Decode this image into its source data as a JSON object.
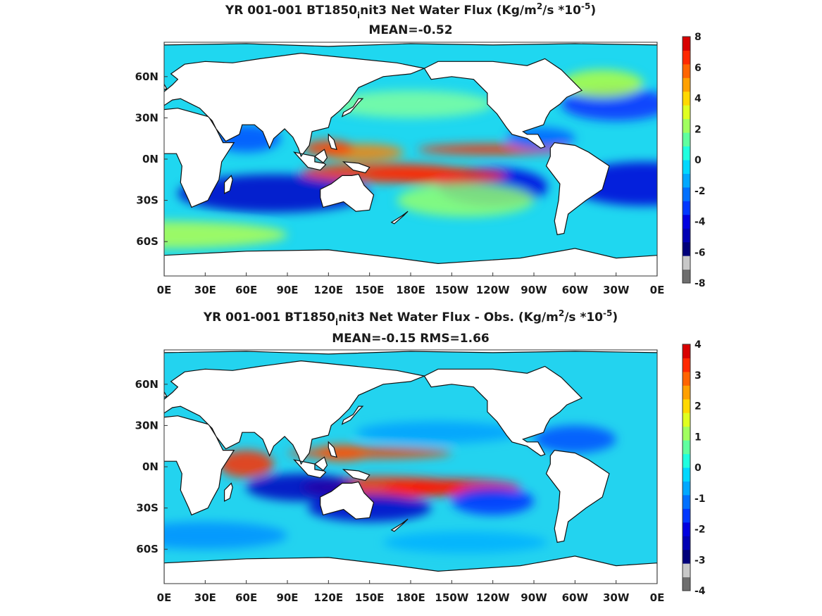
{
  "chart_data": [
    {
      "type": "heatmap",
      "title_main": "YR 001-001 BT1850",
      "title_sub_char": "i",
      "title_rest": "nit3  Net Water Flux (Kg/m",
      "title_exp1": "2",
      "title_mid": "/s *10",
      "title_exp2": "-5",
      "title_end": ")",
      "subtitle": "MEAN=-0.52",
      "x_ticks": [
        "0E",
        "30E",
        "60E",
        "90E",
        "120E",
        "150E",
        "180E",
        "150W",
        "120W",
        "90W",
        "60W",
        "30W",
        "0E"
      ],
      "y_ticks": [
        "60N",
        "30N",
        "0N",
        "30S",
        "60S"
      ],
      "y_tick_values": [
        60,
        30,
        0,
        -30,
        -60
      ],
      "ylim": [
        -85,
        85
      ],
      "colorbar": {
        "ticks": [
          "8",
          "6",
          "4",
          "2",
          "0",
          "-2",
          "-4",
          "-6",
          "-8"
        ],
        "min": -8,
        "max": 8,
        "colors": [
          "#6e6e6e",
          "#c8c8c8",
          "#00007a",
          "#0000b4",
          "#0000e0",
          "#0038ff",
          "#0070ff",
          "#00a8ff",
          "#00d8ff",
          "#20ffdf",
          "#60ff9f",
          "#a0ff5f",
          "#dfff20",
          "#ffd800",
          "#ffa000",
          "#ff6400",
          "#ff2800",
          "#d80000"
        ]
      },
      "grid": false
    },
    {
      "type": "heatmap",
      "title_main": "YR 001-001 BT1850",
      "title_sub_char": "i",
      "title_rest": "nit3  Net Water Flux - Obs. (Kg/m",
      "title_exp1": "2",
      "title_mid": "/s *10",
      "title_exp2": "-5",
      "title_end": ")",
      "subtitle": "MEAN=-0.15 RMS=1.66",
      "x_ticks": [
        "0E",
        "30E",
        "60E",
        "90E",
        "120E",
        "150E",
        "180E",
        "150W",
        "120W",
        "90W",
        "60W",
        "30W",
        "0E"
      ],
      "y_ticks": [
        "60N",
        "30N",
        "0N",
        "30S",
        "60S"
      ],
      "y_tick_values": [
        60,
        30,
        0,
        -30,
        -60
      ],
      "ylim": [
        -85,
        85
      ],
      "colorbar": {
        "ticks": [
          "4",
          "3",
          "2",
          "1",
          "0",
          "-1",
          "-2",
          "-3",
          "-4"
        ],
        "min": -4,
        "max": 4,
        "colors": [
          "#6e6e6e",
          "#c8c8c8",
          "#00007a",
          "#0000b4",
          "#0000e0",
          "#0038ff",
          "#0070ff",
          "#00a8ff",
          "#00d8ff",
          "#20ffdf",
          "#60ff9f",
          "#a0ff5f",
          "#dfff20",
          "#ffd800",
          "#ffa000",
          "#ff6400",
          "#ff2800",
          "#d80000"
        ]
      },
      "grid": false
    }
  ]
}
